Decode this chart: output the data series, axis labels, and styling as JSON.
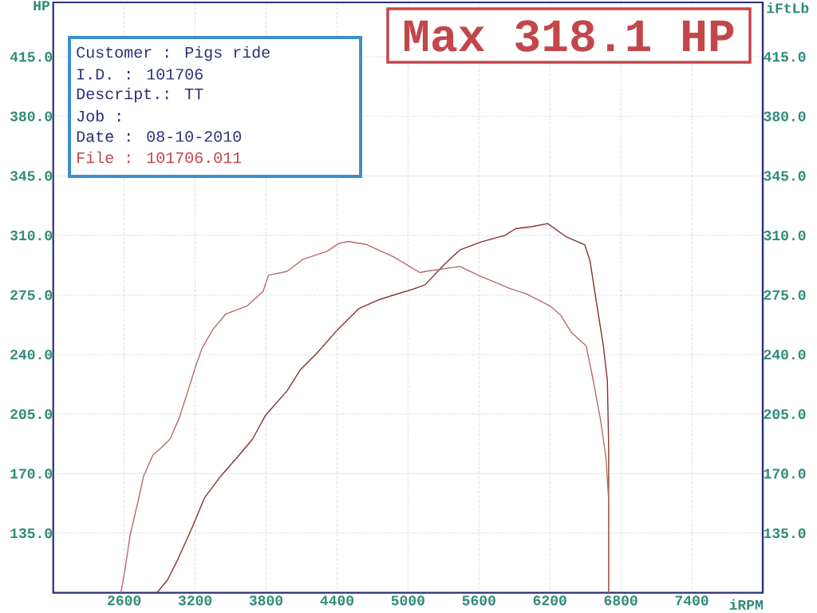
{
  "chart_data": {
    "type": "line",
    "xlabel": "iRPM",
    "ylabel": "HP",
    "y2label": "iFtLb",
    "xlim": [
      2000,
      8000
    ],
    "xticks": [
      2600,
      3200,
      3800,
      4400,
      5000,
      5600,
      6200,
      6800,
      7400
    ],
    "ylim": [
      100,
      447
    ],
    "yticks": [
      {
        "value": 135,
        "label": "135.0"
      },
      {
        "value": 170,
        "label": "170.0"
      },
      {
        "value": 205,
        "label": "205.0"
      },
      {
        "value": 240,
        "label": "240.0"
      },
      {
        "value": 275,
        "label": "275.0"
      },
      {
        "value": 310,
        "label": "310.0"
      },
      {
        "value": 345,
        "label": "345.0"
      },
      {
        "value": 380,
        "label": "380.0"
      },
      {
        "value": 415,
        "label": "415.0"
      }
    ],
    "y2lim": [
      100,
      447
    ],
    "y2ticks": [
      {
        "value": 135,
        "label": "135.0"
      },
      {
        "value": 170,
        "label": "170.0"
      },
      {
        "value": 205,
        "label": "205.0"
      },
      {
        "value": 240,
        "label": "240.0"
      },
      {
        "value": 275,
        "label": "275.0"
      },
      {
        "value": 310,
        "label": "310.0"
      },
      {
        "value": 345,
        "label": "345.0"
      },
      {
        "value": 380,
        "label": "380.0"
      },
      {
        "value": 415,
        "label": "415.0"
      }
    ],
    "grid": true,
    "marker": "none",
    "series": [
      {
        "color": "#8b2f2f",
        "x": [
          2876,
          2966,
          3056,
          3168,
          3281,
          3416,
          3573,
          3686,
          3797,
          3977,
          4090,
          4225,
          4404,
          4584,
          4764,
          5056,
          5146,
          5304,
          5438,
          5618,
          5820,
          5910,
          6045,
          6180,
          6337,
          6494,
          6539,
          6584,
          6652,
          6686,
          6697,
          6697
        ],
        "values": [
          100,
          107.5,
          120,
          137.3,
          156,
          168.5,
          181,
          190.4,
          204.5,
          218.6,
          231.1,
          240.5,
          254.6,
          267,
          272.5,
          278.8,
          281.1,
          292.8,
          301.5,
          306.2,
          310.1,
          314,
          315.2,
          317,
          309.3,
          304.6,
          295.2,
          274.9,
          245.2,
          224.8,
          185.7,
          100
        ]
      },
      {
        "color": "#b86a6a",
        "axis": "y2",
        "x": [
          2573,
          2607,
          2651,
          2719,
          2764,
          2843,
          2921,
          2988,
          3067,
          3146,
          3202,
          3258,
          3348,
          3460,
          3640,
          3775,
          3820,
          3977,
          4112,
          4315,
          4416,
          4495,
          4652,
          4876,
          5101,
          5146,
          5438,
          5595,
          5865,
          6000,
          6202,
          6292,
          6382,
          6506,
          6562,
          6629,
          6674,
          6697,
          6697
        ],
        "values": [
          100,
          113.8,
          134.1,
          154.4,
          168.5,
          181,
          185.7,
          190.4,
          203,
          220.1,
          232.6,
          243.6,
          254.6,
          263.9,
          268.6,
          277.2,
          286.6,
          288.9,
          296,
          300.7,
          305.4,
          306.5,
          304.6,
          297.5,
          288.2,
          288.9,
          291.8,
          286.6,
          278.8,
          275.7,
          268.6,
          263.1,
          253,
          245.2,
          226.4,
          201.3,
          179.5,
          154.4,
          100
        ]
      }
    ],
    "annotations": [
      "Customer : Pigs ride",
      "I.D. : 101706",
      "Descript.: TT",
      "Job :",
      "Date : 08-10-2010",
      "File : 101706.011",
      "Max 318.1 HP"
    ]
  }
}
